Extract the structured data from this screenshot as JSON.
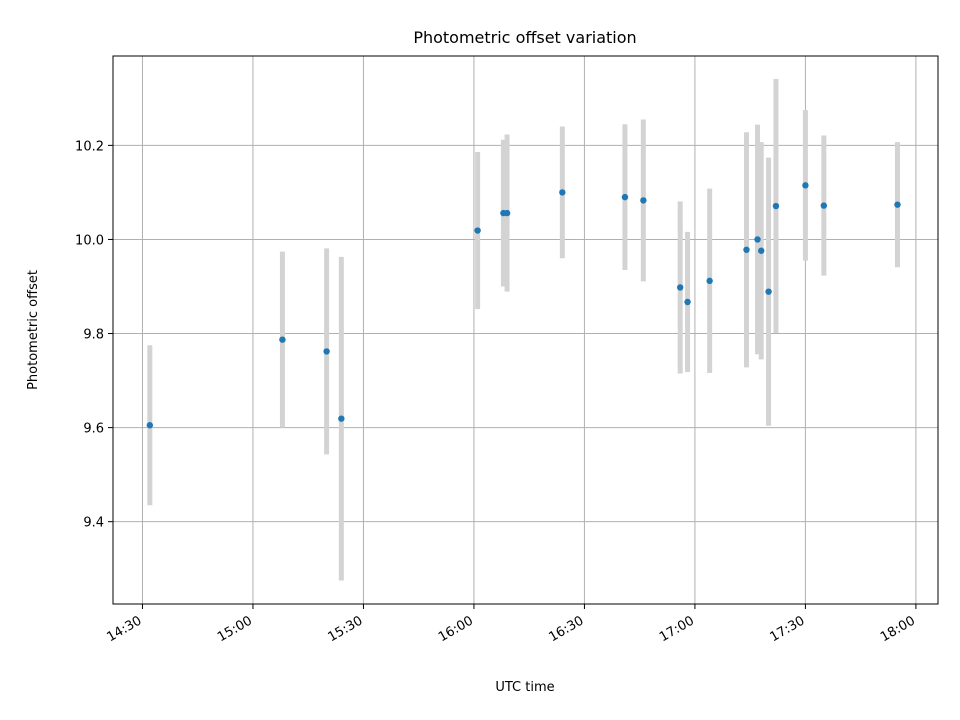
{
  "chart_data": {
    "type": "scatter",
    "title": "Photometric offset variation",
    "xlabel": "UTC time",
    "ylabel": "Photometric offset",
    "x_axis": "time",
    "xlim": [
      "14:22",
      "18:06"
    ],
    "ylim": [
      9.225,
      10.39
    ],
    "grid": true,
    "x_ticks": [
      "14:30",
      "15:00",
      "15:30",
      "16:00",
      "16:30",
      "17:00",
      "17:30",
      "18:00"
    ],
    "y_ticks": [
      9.4,
      9.6,
      9.8,
      10.0,
      10.2
    ],
    "y_tick_labels": [
      "9.4",
      "9.6",
      "9.8",
      "10.0",
      "10.2"
    ],
    "colors": {
      "point": "#1f77b4",
      "errorbar": "#d3d3d3",
      "grid": "#b0b0b0"
    },
    "points": [
      {
        "t": "14:32",
        "y": 9.605,
        "err": 0.17
      },
      {
        "t": "15:08",
        "y": 9.787,
        "err": 0.187
      },
      {
        "t": "15:20",
        "y": 9.762,
        "err": 0.219
      },
      {
        "t": "15:24",
        "y": 9.619,
        "err": 0.344
      },
      {
        "t": "16:01",
        "y": 10.019,
        "err": 0.167
      },
      {
        "t": "16:08",
        "y": 10.056,
        "err": 0.156
      },
      {
        "t": "16:09",
        "y": 10.056,
        "err": 0.167
      },
      {
        "t": "16:24",
        "y": 10.1,
        "err": 0.14
      },
      {
        "t": "16:41",
        "y": 10.09,
        "err": 0.155
      },
      {
        "t": "16:46",
        "y": 10.083,
        "err": 0.172
      },
      {
        "t": "16:56",
        "y": 9.898,
        "err": 0.183
      },
      {
        "t": "16:58",
        "y": 9.867,
        "err": 0.149
      },
      {
        "t": "17:04",
        "y": 9.912,
        "err": 0.196
      },
      {
        "t": "17:14",
        "y": 9.978,
        "err": 0.25
      },
      {
        "t": "17:17",
        "y": 10.0,
        "err": 0.244
      },
      {
        "t": "17:18",
        "y": 9.976,
        "err": 0.231
      },
      {
        "t": "17:20",
        "y": 9.889,
        "err": 0.285
      },
      {
        "t": "17:22",
        "y": 10.071,
        "err": 0.27
      },
      {
        "t": "17:30",
        "y": 10.115,
        "err": 0.16
      },
      {
        "t": "17:35",
        "y": 10.072,
        "err": 0.149
      },
      {
        "t": "17:55",
        "y": 10.074,
        "err": 0.133
      }
    ]
  }
}
